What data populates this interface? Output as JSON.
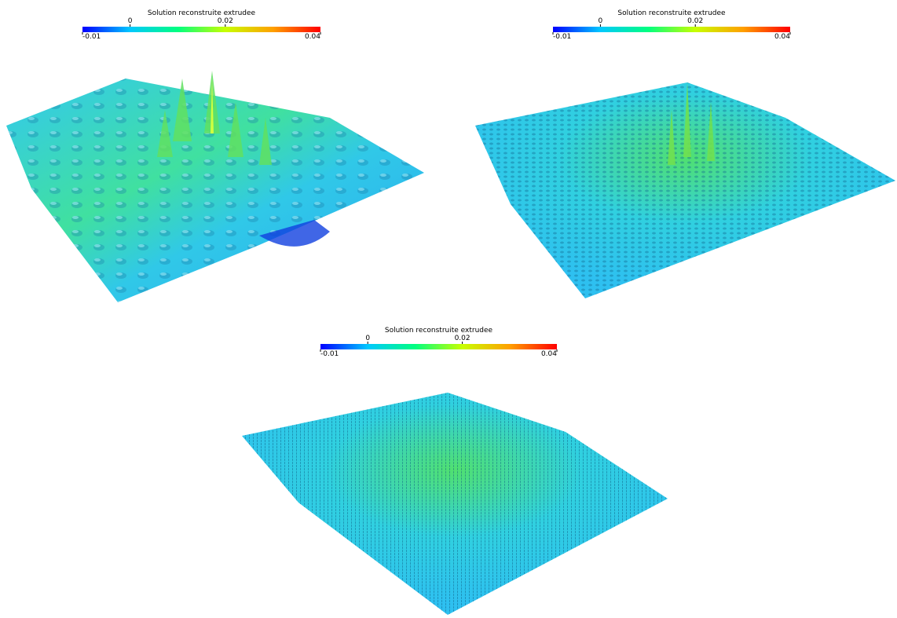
{
  "panels": [
    {
      "colorbar": {
        "title": "Solution reconstruite extrudee",
        "range": [
          -0.01,
          0.04
        ],
        "ticks": [
          0,
          0.02
        ],
        "colors": [
          "#0000ff",
          "#00c8ff",
          "#00ff80",
          "#c8ff00",
          "#ffa000",
          "#ff0000"
        ]
      }
    },
    {
      "colorbar": {
        "title": "Solution reconstruite extrudee",
        "range": [
          -0.01,
          0.04
        ],
        "ticks": [
          0,
          0.02
        ],
        "colors": [
          "#0000ff",
          "#00c8ff",
          "#00ff80",
          "#c8ff00",
          "#ffa000",
          "#ff0000"
        ]
      }
    },
    {
      "colorbar": {
        "title": "Solution reconstruite extrudee",
        "range": [
          -0.01,
          0.04
        ],
        "ticks": [
          0,
          0.02
        ],
        "colors": [
          "#0000ff",
          "#00c8ff",
          "#00ff80",
          "#c8ff00",
          "#ffa000",
          "#ff0000"
        ]
      }
    }
  ]
}
